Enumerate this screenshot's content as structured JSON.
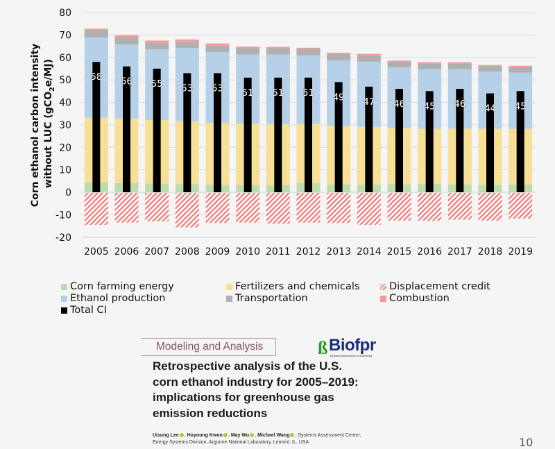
{
  "chart_data": {
    "type": "bar",
    "subtype": "stacked-with-overlay",
    "title": "",
    "xlabel": "",
    "ylabel": "Corn ethanol carbon intensity without LUC (gCO2e/MJ)",
    "ylabel_line1": "Corn ethanol carbon intensity",
    "ylabel_line2_pre": "without LUC (gCO",
    "ylabel_line2_sub": "2",
    "ylabel_line2_post": "e/MJ)",
    "ylim": [
      -20,
      80
    ],
    "yticks": [
      -20,
      -10,
      0,
      10,
      20,
      30,
      40,
      50,
      60,
      70,
      80
    ],
    "grid": true,
    "categories": [
      "2005",
      "2006",
      "2007",
      "2008",
      "2009",
      "2010",
      "2011",
      "2012",
      "2013",
      "2014",
      "2015",
      "2016",
      "2017",
      "2018",
      "2019"
    ],
    "stacked_series": [
      {
        "name": "Corn farming energy",
        "color": "#bcdcb0",
        "values": [
          4.4,
          4.1,
          3.9,
          3.6,
          3.2,
          3.1,
          3.1,
          4.1,
          3.4,
          3.3,
          3.6,
          3.6,
          3.4,
          3.3,
          3.4
        ]
      },
      {
        "name": "Fertilizers and chemicals",
        "color": "#f7df95",
        "values": [
          28.7,
          28.7,
          28.2,
          28.0,
          27.7,
          27.4,
          27.1,
          26.3,
          26.1,
          25.8,
          25.0,
          24.6,
          24.8,
          24.9,
          24.8
        ]
      },
      {
        "name": "Ethanol production",
        "color": "#b6d0e8",
        "values": [
          35.8,
          33.0,
          31.5,
          32.6,
          31.4,
          30.8,
          31.1,
          30.5,
          29.1,
          29.0,
          27.0,
          26.6,
          26.6,
          25.5,
          25.0
        ]
      },
      {
        "name": "Transportation",
        "color": "#b0b0b0",
        "values": [
          3.4,
          3.2,
          2.8,
          2.9,
          2.9,
          2.9,
          2.9,
          2.9,
          3.0,
          3.0,
          2.6,
          2.6,
          2.6,
          2.5,
          2.6
        ]
      },
      {
        "name": "Combustion",
        "color": "#f59a9a",
        "values": [
          0.5,
          0.9,
          1.1,
          0.9,
          1.0,
          0.6,
          0.5,
          0.5,
          0.5,
          0.5,
          0.4,
          0.5,
          0.5,
          0.4,
          0.5
        ]
      }
    ],
    "negative_series": {
      "name": "Displacement credit",
      "color": "#f08080",
      "pattern": "hatch",
      "values": [
        -14.5,
        -13.5,
        -13.0,
        -15.6,
        -13.7,
        -13.5,
        -14.0,
        -13.5,
        -13.7,
        -14.5,
        -12.6,
        -12.7,
        -12.2,
        -12.6,
        -11.7
      ]
    },
    "overlay_series": {
      "name": "Total CI",
      "color": "#000000",
      "values": [
        58,
        56,
        55,
        53,
        53,
        51,
        51,
        51,
        49,
        47,
        46,
        45,
        46,
        44,
        45
      ],
      "labels": [
        "58",
        "56",
        "55",
        "53",
        "53",
        "51",
        "51",
        "51",
        "49",
        "47",
        "46",
        "45",
        "46",
        "44",
        "45"
      ]
    },
    "legend": {
      "placement": "bottom",
      "items": [
        {
          "label": "Corn farming energy",
          "color": "#bcdcb0",
          "pattern": "solid"
        },
        {
          "label": "Fertilizers and chemicals",
          "color": "#f7df95",
          "pattern": "solid"
        },
        {
          "label": "Displacement credit",
          "color": "#f08080",
          "pattern": "hatch"
        },
        {
          "label": "Ethanol production",
          "color": "#b6d0e8",
          "pattern": "solid"
        },
        {
          "label": "Transportation",
          "color": "#b0b0b0",
          "pattern": "solid"
        },
        {
          "label": "Combustion",
          "color": "#f59a9a",
          "pattern": "solid"
        },
        {
          "label": "Total CI",
          "color": "#000000",
          "pattern": "solid"
        }
      ]
    }
  },
  "paper": {
    "section_label": "Modeling and Analysis",
    "journal_logo": "Biofpr",
    "journal_logo_mark": "ß",
    "journal_logo_sub": "Biofuels Bioproducts & Biorefining",
    "title_lines": [
      "Retrospective analysis of the U.S.",
      "corn ethanol industry for 2005–2019:",
      "implications for greenhouse gas",
      "emission reductions"
    ],
    "authors": [
      "Uisung Lee",
      "Hoyoung Kwon",
      "May Wu",
      "Michael Wang"
    ],
    "affiliation_line1": ", Systems Assessment Center,",
    "affiliation_line2": "Energy Systems Division, Argonne National Laboratory, Lemont, IL, USA"
  },
  "slide_number": "10"
}
